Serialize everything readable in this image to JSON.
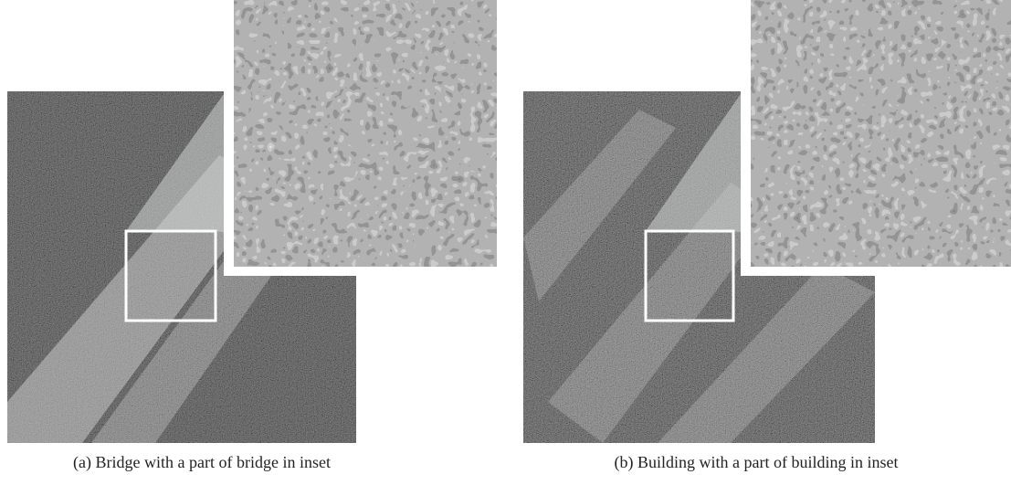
{
  "subfigures": [
    {
      "caption": "(a) Bridge with a part of bridge in inset"
    },
    {
      "caption": "(b) Building with a part of building in inset"
    }
  ]
}
